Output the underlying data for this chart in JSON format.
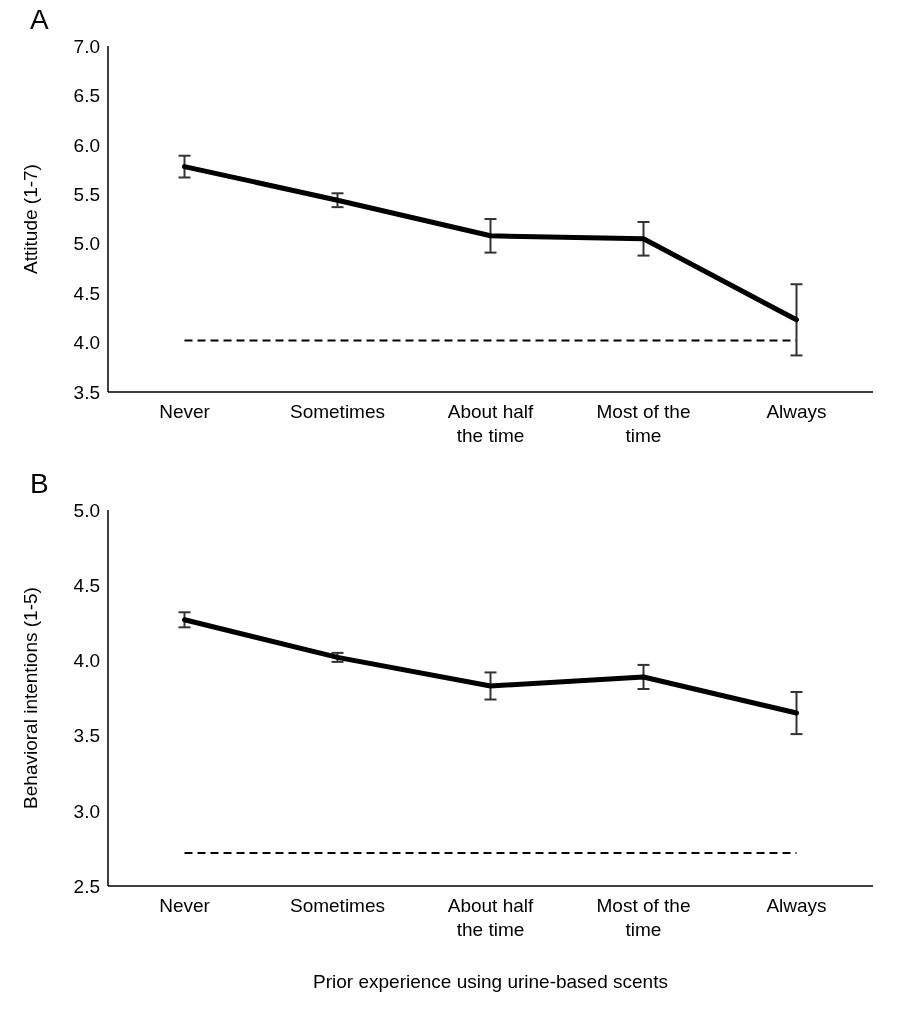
{
  "chart_data": [
    {
      "type": "line",
      "title": "A",
      "ylabel": "Attitude (1-7)",
      "categories": [
        "Never",
        "Sometimes",
        "About half the time",
        "Most of the time",
        "Always"
      ],
      "series": [
        {
          "color": "#000000",
          "values": [
            5.78,
            5.44,
            5.08,
            5.05,
            4.23
          ],
          "errors": [
            0.11,
            0.07,
            0.17,
            0.17,
            0.36
          ]
        }
      ],
      "ylim": [
        3.5,
        7.0
      ],
      "yticks": [
        {
          "value": 3.5,
          "label": "3.5"
        },
        {
          "value": 4,
          "label": "4.0"
        },
        {
          "value": 4.5,
          "label": "4.5"
        },
        {
          "value": 5,
          "label": "5.0"
        },
        {
          "value": 5.5,
          "label": "5.5"
        },
        {
          "value": 6,
          "label": "6.0"
        },
        {
          "value": 6.5,
          "label": "6.5"
        },
        {
          "value": 7,
          "label": "7.0"
        }
      ],
      "ref_lines": [
        {
          "axis": "y",
          "value": 4.02,
          "color": "#000000",
          "line_style": "dashed"
        }
      ],
      "grid": false,
      "legend": false,
      "marker": "none",
      "line_style": "solid"
    },
    {
      "type": "line",
      "title": "B",
      "ylabel": "Behavioral intentions (1-5)",
      "xlabel": "Prior experience using urine-based scents",
      "categories": [
        "Never",
        "Sometimes",
        "About half the time",
        "Most of the time",
        "Always"
      ],
      "series": [
        {
          "color": "#000000",
          "values": [
            4.27,
            4.02,
            3.83,
            3.89,
            3.65
          ],
          "errors": [
            0.05,
            0.03,
            0.09,
            0.08,
            0.14
          ]
        }
      ],
      "ylim": [
        2.5,
        5.0
      ],
      "yticks": [
        {
          "value": 2.5,
          "label": "2.5"
        },
        {
          "value": 3,
          "label": "3.0"
        },
        {
          "value": 3.5,
          "label": "3.5"
        },
        {
          "value": 4,
          "label": "4.0"
        },
        {
          "value": 4.5,
          "label": "4.5"
        },
        {
          "value": 5,
          "label": "5.0"
        }
      ],
      "ref_lines": [
        {
          "axis": "y",
          "value": 2.72,
          "color": "#000000",
          "line_style": "dashed"
        }
      ],
      "grid": false,
      "legend": false,
      "marker": "none",
      "line_style": "solid"
    }
  ]
}
